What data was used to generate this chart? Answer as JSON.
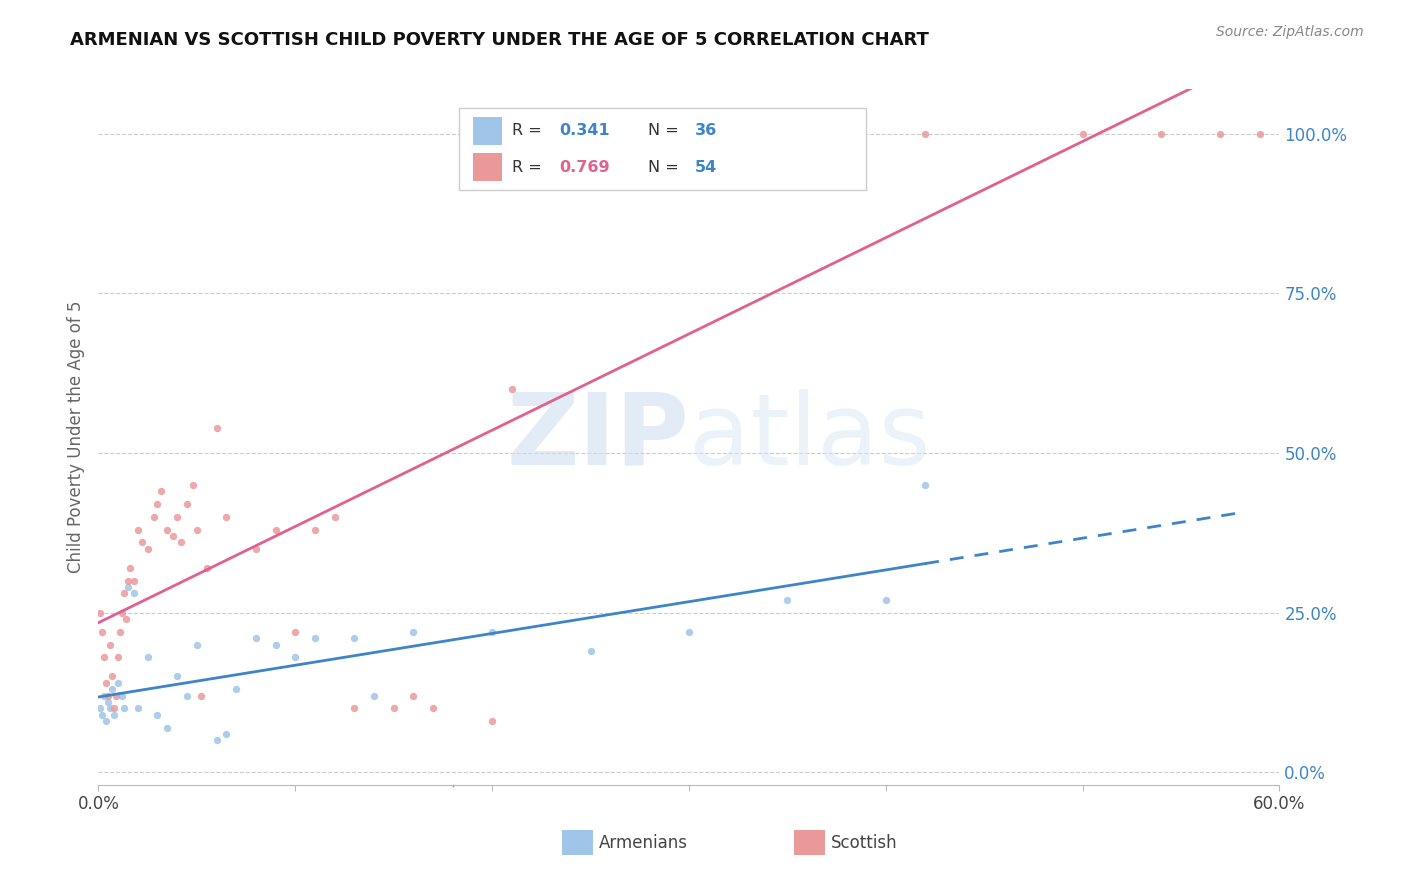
{
  "title": "ARMENIAN VS SCOTTISH CHILD POVERTY UNDER THE AGE OF 5 CORRELATION CHART",
  "source": "Source: ZipAtlas.com",
  "ylabel": "Child Poverty Under the Age of 5",
  "xlim": [
    0.0,
    0.6
  ],
  "ylim": [
    -0.02,
    1.07
  ],
  "yticks": [
    0.0,
    0.25,
    0.5,
    0.75,
    1.0
  ],
  "ytick_labels": [
    "0.0%",
    "25.0%",
    "50.0%",
    "75.0%",
    "100.0%"
  ],
  "xtick_positions": [
    0.0,
    0.1,
    0.2,
    0.3,
    0.4,
    0.5,
    0.6
  ],
  "xtick_labels": [
    "0.0%",
    "",
    "",
    "",
    "",
    "",
    "60.0%"
  ],
  "armenian_R": 0.341,
  "armenian_N": 36,
  "scottish_R": 0.769,
  "scottish_N": 54,
  "blue_color": "#9fc5e8",
  "pink_color": "#ea9999",
  "blue_line_color": "#3d85c8",
  "pink_line_color": "#e06090",
  "background_color": "#ffffff",
  "armenian_x": [
    0.001,
    0.002,
    0.003,
    0.004,
    0.005,
    0.006,
    0.007,
    0.008,
    0.01,
    0.012,
    0.013,
    0.015,
    0.018,
    0.02,
    0.025,
    0.03,
    0.035,
    0.04,
    0.045,
    0.05,
    0.06,
    0.065,
    0.07,
    0.08,
    0.09,
    0.1,
    0.11,
    0.13,
    0.14,
    0.16,
    0.2,
    0.25,
    0.3,
    0.35,
    0.4,
    0.42
  ],
  "armenian_y": [
    0.1,
    0.09,
    0.12,
    0.08,
    0.11,
    0.1,
    0.13,
    0.09,
    0.14,
    0.12,
    0.1,
    0.29,
    0.28,
    0.1,
    0.18,
    0.09,
    0.07,
    0.15,
    0.12,
    0.2,
    0.05,
    0.06,
    0.13,
    0.21,
    0.2,
    0.18,
    0.21,
    0.21,
    0.12,
    0.22,
    0.22,
    0.19,
    0.22,
    0.27,
    0.27,
    0.45
  ],
  "scottish_x": [
    0.001,
    0.002,
    0.003,
    0.004,
    0.005,
    0.006,
    0.007,
    0.008,
    0.009,
    0.01,
    0.011,
    0.012,
    0.013,
    0.014,
    0.015,
    0.016,
    0.018,
    0.02,
    0.022,
    0.025,
    0.028,
    0.03,
    0.032,
    0.035,
    0.038,
    0.04,
    0.042,
    0.045,
    0.048,
    0.05,
    0.052,
    0.055,
    0.06,
    0.065,
    0.08,
    0.09,
    0.1,
    0.11,
    0.12,
    0.13,
    0.15,
    0.16,
    0.17,
    0.2,
    0.21,
    0.22,
    0.25,
    0.3,
    0.38,
    0.42,
    0.5,
    0.54,
    0.57,
    0.59
  ],
  "scottish_y": [
    0.25,
    0.22,
    0.18,
    0.14,
    0.12,
    0.2,
    0.15,
    0.1,
    0.12,
    0.18,
    0.22,
    0.25,
    0.28,
    0.24,
    0.3,
    0.32,
    0.3,
    0.38,
    0.36,
    0.35,
    0.4,
    0.42,
    0.44,
    0.38,
    0.37,
    0.4,
    0.36,
    0.42,
    0.45,
    0.38,
    0.12,
    0.32,
    0.54,
    0.4,
    0.35,
    0.38,
    0.22,
    0.38,
    0.4,
    0.1,
    0.1,
    0.12,
    0.1,
    0.08,
    0.6,
    1.0,
    1.0,
    1.0,
    1.0,
    1.0,
    1.0,
    1.0,
    1.0,
    1.0
  ]
}
